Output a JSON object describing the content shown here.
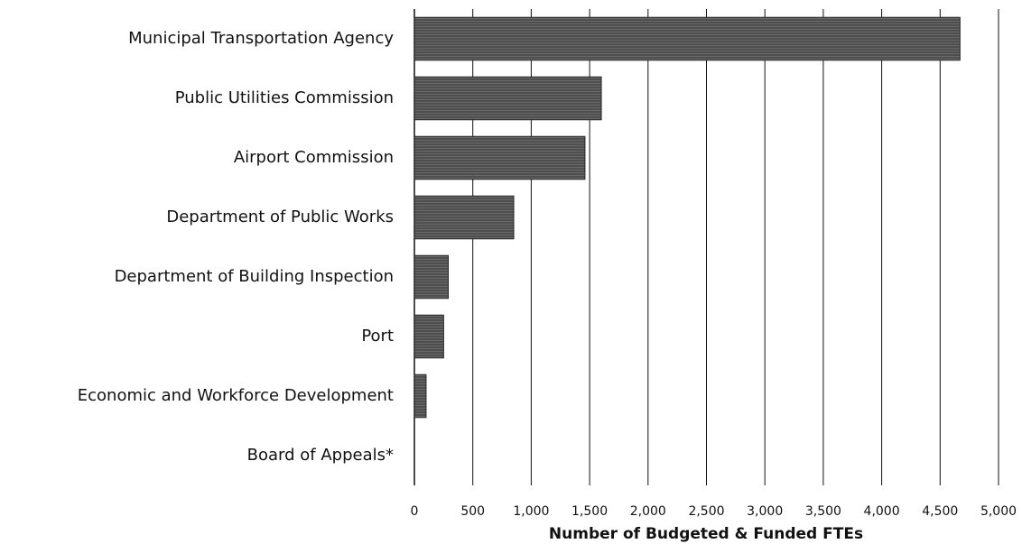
{
  "chart_data": {
    "type": "bar",
    "orientation": "horizontal",
    "x_label": "Number of Budgeted & Funded FTEs",
    "categories": [
      "Municipal Transportation Agency",
      "Public Utilities Commission",
      "Airport Commission",
      "Department of Public Works",
      "Department of Building Inspection",
      "Port",
      "Economic and Workforce Development",
      "Board of Appeals*"
    ],
    "values": [
      4670,
      1600,
      1460,
      850,
      290,
      250,
      100,
      0
    ],
    "color": "#5a5a5a",
    "xlim": [
      0,
      5000
    ],
    "xticks": [
      0,
      500,
      {
        "value": 1000,
        "label": "1,000"
      },
      {
        "value": 1500,
        "label": "1,500"
      },
      {
        "value": 2000,
        "label": "2,000"
      },
      {
        "value": 2500,
        "label": "2,500"
      },
      {
        "value": 3000,
        "label": "3,000"
      },
      {
        "value": 3500,
        "label": "3,500"
      },
      {
        "value": 4000,
        "label": "4,000"
      },
      {
        "value": 4500,
        "label": "4,500"
      },
      {
        "value": 5000,
        "label": "5,000"
      }
    ],
    "grid": true
  }
}
